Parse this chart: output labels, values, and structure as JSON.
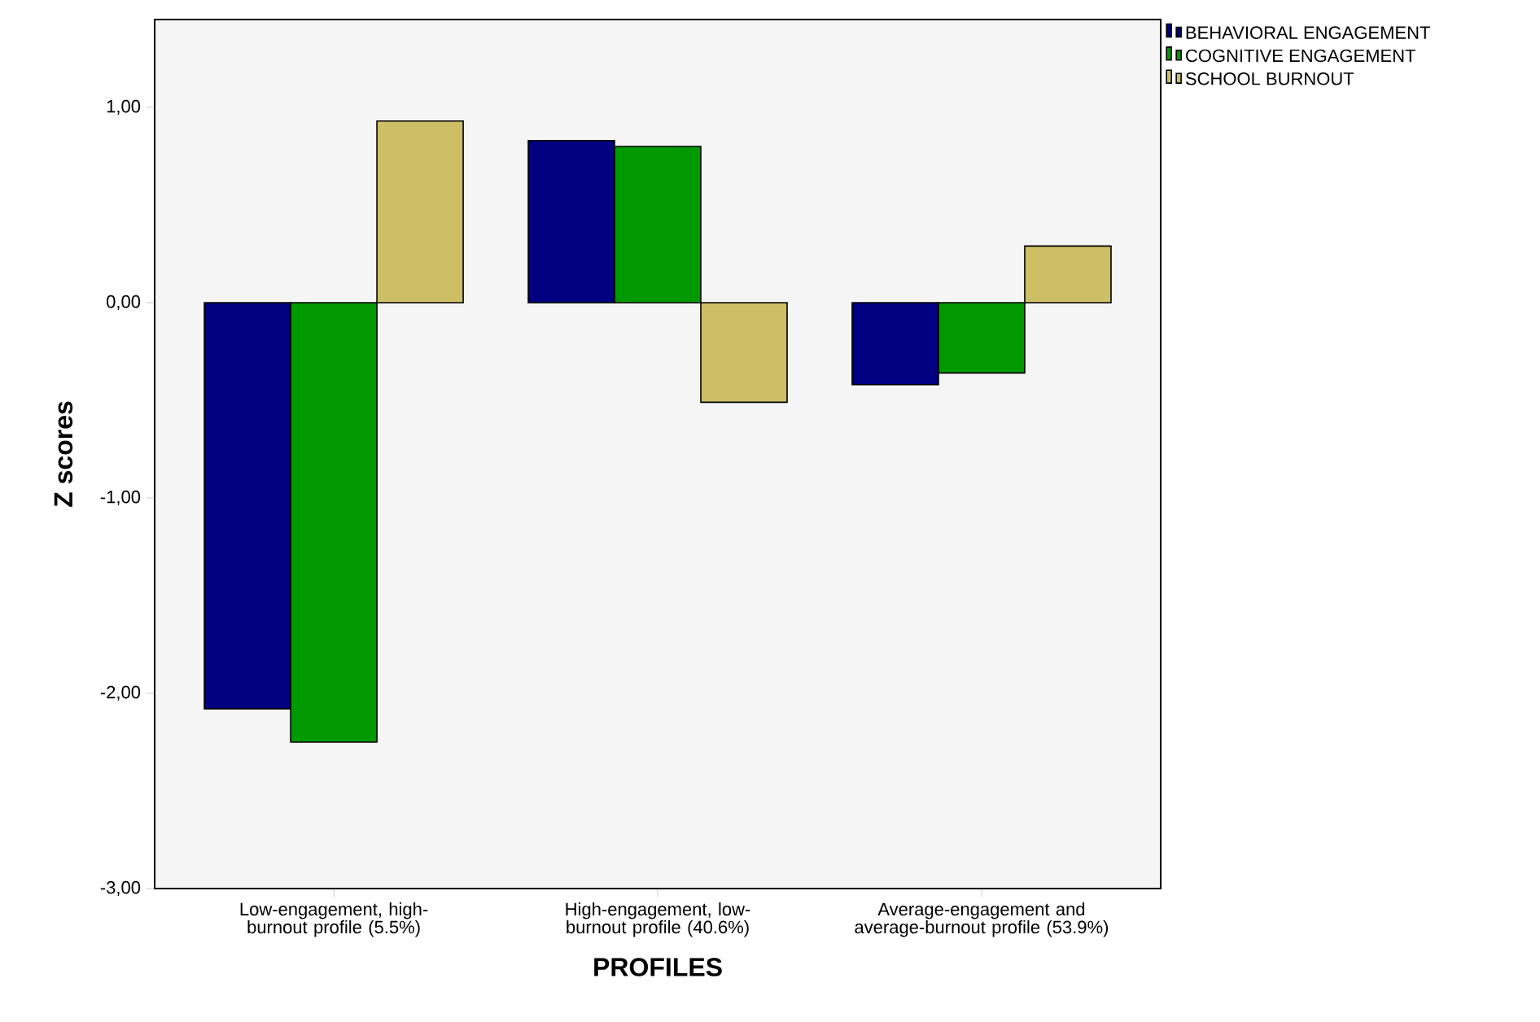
{
  "chart_data": {
    "type": "bar",
    "categories": [
      "Low-engagement, high-burnout profile (5.5%)",
      "High-engagement, low-burnout profile (40.6%)",
      "Average-engagement and average-burnout profile (53.9%)"
    ],
    "series": [
      {
        "name": "BEHAVIORAL ENGAGEMENT",
        "color": "#000080",
        "values": [
          -2.08,
          0.83,
          -0.42
        ]
      },
      {
        "name": "COGNITIVE ENGAGEMENT",
        "color": "#009900",
        "values": [
          -2.25,
          0.8,
          -0.36
        ]
      },
      {
        "name": "SCHOOL BURNOUT",
        "color": "#ccbf66",
        "values": [
          0.93,
          -0.51,
          0.29
        ]
      }
    ],
    "xlabel": "PROFILES",
    "ylabel": "Z scores",
    "ylim": [
      -3,
      1.45
    ],
    "yticks": [
      {
        "value": -3,
        "label": "-3,00"
      },
      {
        "value": -2,
        "label": "-2,00"
      },
      {
        "value": -1,
        "label": "-1,00"
      },
      {
        "value": 0,
        "label": "0,00"
      },
      {
        "value": 1,
        "label": "1,00"
      }
    ],
    "grid": false,
    "legend": "top right"
  }
}
